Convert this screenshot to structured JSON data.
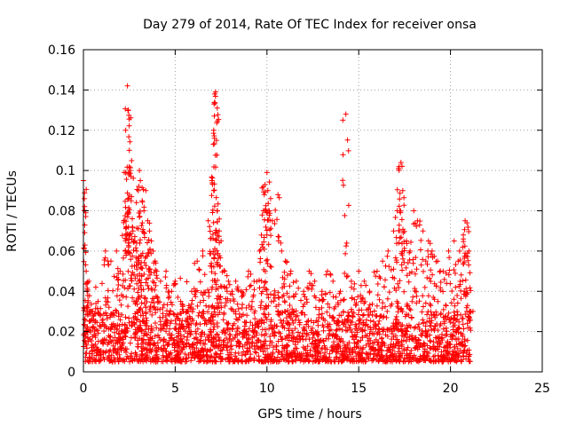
{
  "chart_data": {
    "type": "scatter",
    "title": "Day 279 of 2014, Rate Of TEC Index for receiver onsa",
    "xlabel": "GPS time / hours",
    "ylabel": "ROTI / TECUs",
    "xlim": [
      0,
      25
    ],
    "ylim": [
      0,
      0.16
    ],
    "xticks": [
      0,
      5,
      10,
      15,
      20,
      25
    ],
    "xtick_labels": [
      "0",
      "5",
      "10",
      "15",
      "20",
      "25"
    ],
    "yticks": [
      0,
      0.02,
      0.04,
      0.06,
      0.08,
      0.1,
      0.12,
      0.14,
      0.16
    ],
    "ytick_labels": [
      "0",
      "0.02",
      "0.04",
      "0.06",
      "0.08",
      "0.1",
      "0.12",
      "0.14",
      "0.16"
    ],
    "grid": true,
    "marker": "+",
    "marker_color": "#ff0000",
    "data_x_range": [
      0,
      21.1
    ],
    "baseline_band": [
      0.005,
      0.03
    ],
    "series": [
      {
        "name": "ROTI",
        "x": [
          0.0,
          0.05,
          0.08,
          0.15,
          0.2,
          0.3,
          0.5,
          0.8,
          1.2,
          1.5,
          1.8,
          2.0,
          2.2,
          2.3,
          2.4,
          2.45,
          2.5,
          2.55,
          2.6,
          2.7,
          2.8,
          2.9,
          3.0,
          3.05,
          3.1,
          3.2,
          3.3,
          3.4,
          3.5,
          3.6,
          3.7,
          3.8,
          3.9,
          4.0,
          4.2,
          4.5,
          4.8,
          5.0,
          5.3,
          5.6,
          5.9,
          6.2,
          6.5,
          6.8,
          7.0,
          7.1,
          7.15,
          7.2,
          7.25,
          7.3,
          7.4,
          7.5,
          7.7,
          7.9,
          8.1,
          8.3,
          8.6,
          9.0,
          9.3,
          9.6,
          9.8,
          9.9,
          10.0,
          10.05,
          10.1,
          10.3,
          10.6,
          10.8,
          11.0,
          11.3,
          11.6,
          12.0,
          12.3,
          12.6,
          13.0,
          13.3,
          13.6,
          14.0,
          14.3,
          14.6,
          15.0,
          15.3,
          15.6,
          16.0,
          16.3,
          16.6,
          16.9,
          17.1,
          17.2,
          17.3,
          17.4,
          17.6,
          17.8,
          18.0,
          18.2,
          18.5,
          18.8,
          19.0,
          19.3,
          19.6,
          19.9,
          20.2,
          20.5,
          20.7,
          20.8,
          20.9,
          21.0,
          21.05
        ],
        "y": [
          0.095,
          0.086,
          0.063,
          0.05,
          0.04,
          0.045,
          0.03,
          0.035,
          0.06,
          0.055,
          0.06,
          0.05,
          0.075,
          0.12,
          0.142,
          0.13,
          0.11,
          0.1,
          0.085,
          0.07,
          0.065,
          0.06,
          0.09,
          0.1,
          0.095,
          0.085,
          0.08,
          0.09,
          0.075,
          0.07,
          0.065,
          0.06,
          0.055,
          0.05,
          0.045,
          0.05,
          0.04,
          0.045,
          0.035,
          0.03,
          0.04,
          0.055,
          0.06,
          0.075,
          0.095,
          0.12,
          0.138,
          0.139,
          0.115,
          0.08,
          0.07,
          0.065,
          0.05,
          0.045,
          0.04,
          0.045,
          0.04,
          0.05,
          0.045,
          0.06,
          0.08,
          0.093,
          0.099,
          0.09,
          0.08,
          0.075,
          0.088,
          0.06,
          0.055,
          0.05,
          0.045,
          0.04,
          0.05,
          0.045,
          0.04,
          0.05,
          0.045,
          0.04,
          0.128,
          0.045,
          0.05,
          0.045,
          0.04,
          0.05,
          0.055,
          0.06,
          0.07,
          0.08,
          0.102,
          0.104,
          0.09,
          0.065,
          0.06,
          0.08,
          0.075,
          0.07,
          0.065,
          0.06,
          0.055,
          0.05,
          0.06,
          0.065,
          0.06,
          0.068,
          0.075,
          0.074,
          0.06,
          0.03
        ]
      }
    ]
  }
}
